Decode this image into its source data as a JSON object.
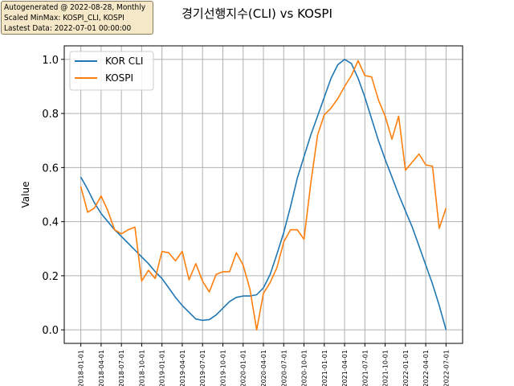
{
  "info": {
    "line1": "Autogenerated @ 2022-08-28, Monthly",
    "line2": "Scaled MinMax: KOSPI_CLI, KOSPI",
    "line3": "Lastest Data: 2022-07-01 00:00:00"
  },
  "colors": {
    "kor_cli": "#1f77b4",
    "kospi": "#ff7f0e",
    "grid": "#b0b0b0"
  },
  "chart_data": {
    "type": "line",
    "title": "경기선행지수(CLI) vs KOSPI",
    "xlabel": "",
    "ylabel": "Value",
    "ylim": [
      -0.05,
      1.05
    ],
    "yticks": [
      0.0,
      0.2,
      0.4,
      0.6,
      0.8,
      1.0
    ],
    "ytick_labels": [
      "0.0",
      "0.2",
      "0.4",
      "0.6",
      "0.8",
      "1.0"
    ],
    "grid": true,
    "legend": "top-left",
    "x": [
      "2018-01",
      "2018-02",
      "2018-03",
      "2018-04",
      "2018-05",
      "2018-06",
      "2018-07",
      "2018-08",
      "2018-09",
      "2018-10",
      "2018-11",
      "2018-12",
      "2019-01",
      "2019-02",
      "2019-03",
      "2019-04",
      "2019-05",
      "2019-06",
      "2019-07",
      "2019-08",
      "2019-09",
      "2019-10",
      "2019-11",
      "2019-12",
      "2020-01",
      "2020-02",
      "2020-03",
      "2020-04",
      "2020-05",
      "2020-06",
      "2020-07",
      "2020-08",
      "2020-09",
      "2020-10",
      "2020-11",
      "2020-12",
      "2021-01",
      "2021-02",
      "2021-03",
      "2021-04",
      "2021-05",
      "2021-06",
      "2021-07",
      "2021-08",
      "2021-09",
      "2021-10",
      "2021-11",
      "2021-12",
      "2022-01",
      "2022-02",
      "2022-03",
      "2022-04",
      "2022-05",
      "2022-06",
      "2022-07"
    ],
    "xtick_labels": [
      "2018-01-01",
      "2018-04-01",
      "2018-07-01",
      "2018-10-01",
      "2019-01-01",
      "2019-04-01",
      "2019-07-01",
      "2019-10-01",
      "2020-01-01",
      "2020-04-01",
      "2020-07-01",
      "2020-10-01",
      "2021-01-01",
      "2021-04-01",
      "2021-07-01",
      "2021-10-01",
      "2022-01-01",
      "2022-04-01",
      "2022-07-01"
    ],
    "series": [
      {
        "name": "KOR CLI",
        "values": [
          0.565,
          0.52,
          0.47,
          0.43,
          0.4,
          0.37,
          0.345,
          0.32,
          0.295,
          0.27,
          0.245,
          0.215,
          0.19,
          0.155,
          0.12,
          0.09,
          0.065,
          0.04,
          0.035,
          0.038,
          0.055,
          0.08,
          0.105,
          0.12,
          0.125,
          0.125,
          0.13,
          0.155,
          0.205,
          0.28,
          0.36,
          0.455,
          0.56,
          0.64,
          0.72,
          0.79,
          0.86,
          0.93,
          0.98,
          1.0,
          0.985,
          0.93,
          0.86,
          0.78,
          0.7,
          0.63,
          0.565,
          0.5,
          0.44,
          0.38,
          0.31,
          0.24,
          0.17,
          0.09,
          0.0
        ]
      },
      {
        "name": "KOSPI",
        "values": [
          0.53,
          0.435,
          0.45,
          0.495,
          0.44,
          0.37,
          0.355,
          0.37,
          0.38,
          0.18,
          0.22,
          0.19,
          0.29,
          0.285,
          0.255,
          0.29,
          0.185,
          0.245,
          0.18,
          0.14,
          0.205,
          0.215,
          0.215,
          0.285,
          0.24,
          0.15,
          0.0,
          0.135,
          0.175,
          0.23,
          0.325,
          0.37,
          0.37,
          0.335,
          0.54,
          0.72,
          0.795,
          0.82,
          0.855,
          0.9,
          0.94,
          0.995,
          0.94,
          0.935,
          0.85,
          0.79,
          0.705,
          0.79,
          0.59,
          0.62,
          0.65,
          0.61,
          0.605,
          0.375,
          0.45
        ]
      }
    ]
  }
}
